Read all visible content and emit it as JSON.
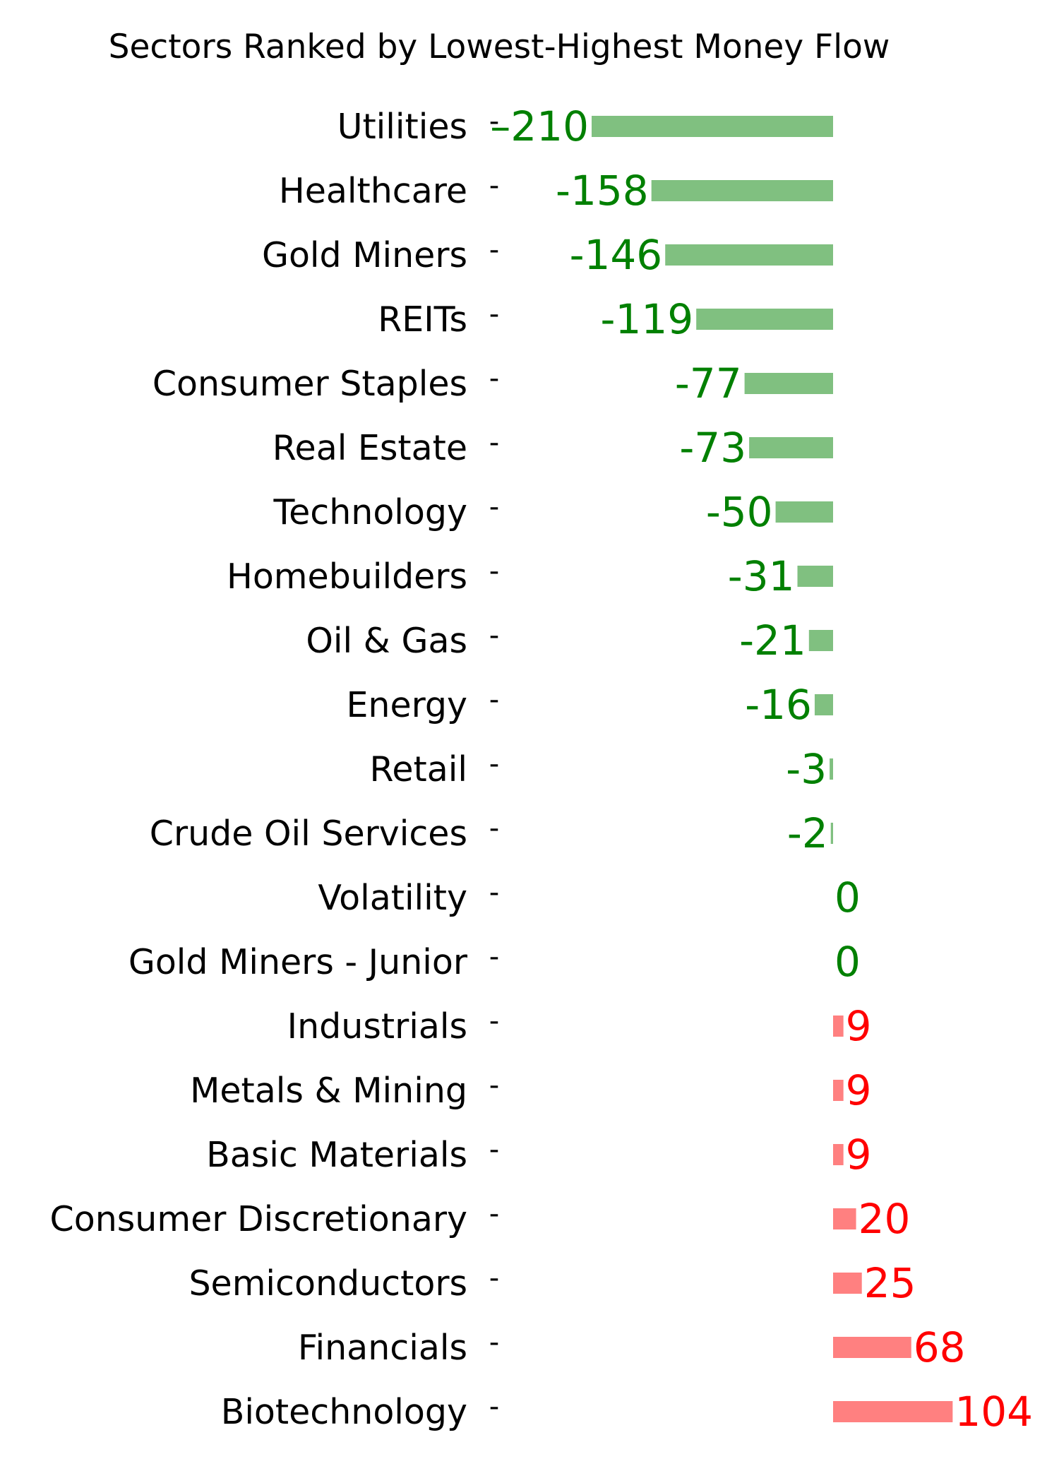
{
  "chart_data": {
    "type": "bar",
    "orientation": "horizontal",
    "title": "Sectors Ranked by Lowest-Highest Money Flow",
    "xlabel": "",
    "ylabel": "",
    "grid": false,
    "legend": "none",
    "xlim": [
      -210,
      104
    ],
    "colors": {
      "negative_bar": "#80c080",
      "negative_text": "#008000",
      "positive_bar": "#ff8080",
      "positive_text": "#ff0000"
    },
    "tick_glyph": "-",
    "categories": [
      "Utilities",
      "Healthcare",
      "Gold Miners",
      "REITs",
      "Consumer Staples",
      "Real Estate",
      "Technology",
      "Homebuilders",
      "Oil & Gas",
      "Energy",
      "Retail",
      "Crude Oil Services",
      "Volatility",
      "Gold Miners - Junior",
      "Industrials",
      "Metals & Mining",
      "Basic Materials",
      "Consumer Discretionary",
      "Semiconductors",
      "Financials",
      "Biotechnology"
    ],
    "values": [
      -210,
      -158,
      -146,
      -119,
      -77,
      -73,
      -50,
      -31,
      -21,
      -16,
      -3,
      -2,
      0,
      0,
      9,
      9,
      9,
      20,
      25,
      68,
      104
    ],
    "value_labels": [
      "–210",
      "-158",
      "-146",
      "-119",
      "-77",
      "-73",
      "-50",
      "-31",
      "-21",
      "-16",
      "-3",
      "-2",
      "0",
      "0",
      "9",
      "9",
      "9",
      "20",
      "25",
      "68",
      "104"
    ]
  }
}
